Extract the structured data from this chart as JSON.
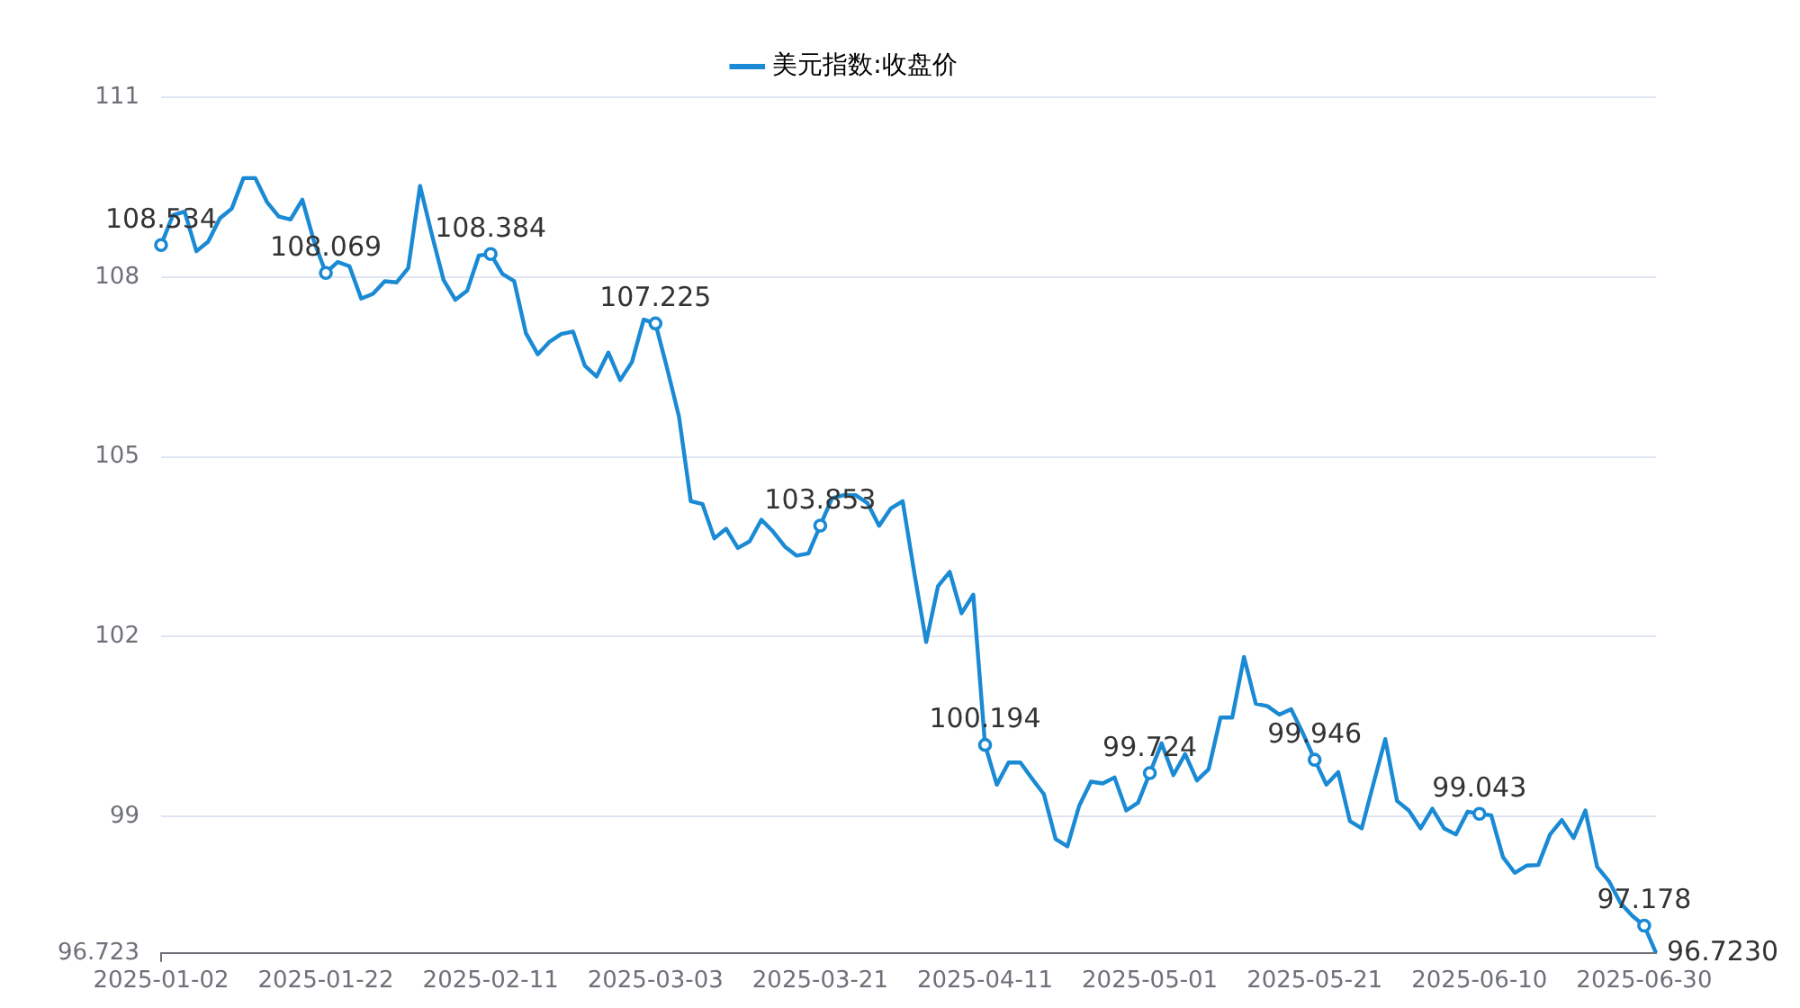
{
  "chart_data": {
    "type": "line",
    "categories": [
      "2025-01-02",
      null,
      null,
      null,
      null,
      null,
      null,
      null,
      null,
      null,
      null,
      null,
      null,
      null,
      "2025-01-22",
      null,
      null,
      null,
      null,
      null,
      null,
      null,
      null,
      null,
      null,
      null,
      null,
      null,
      "2025-02-11",
      null,
      null,
      null,
      null,
      null,
      null,
      null,
      null,
      null,
      null,
      null,
      null,
      null,
      "2025-03-03",
      null,
      null,
      null,
      null,
      null,
      null,
      null,
      null,
      null,
      null,
      null,
      null,
      null,
      "2025-03-21",
      null,
      null,
      null,
      null,
      null,
      null,
      null,
      null,
      null,
      null,
      null,
      null,
      null,
      "2025-04-11",
      null,
      null,
      null,
      null,
      null,
      null,
      null,
      null,
      null,
      null,
      null,
      null,
      null,
      "2025-05-01",
      null,
      null,
      null,
      null,
      null,
      null,
      null,
      null,
      null,
      null,
      null,
      null,
      null,
      "2025-05-21",
      null,
      null,
      null,
      null,
      null,
      null,
      null,
      null,
      null,
      null,
      null,
      null,
      null,
      "2025-06-10",
      null,
      null,
      null,
      null,
      null,
      null,
      null,
      null,
      null,
      null,
      null,
      null,
      null,
      "2025-06-30",
      null
    ],
    "series": [
      {
        "name": "美元指数:收盘价",
        "color": "#1a8ad4",
        "values": [
          108.534,
          109.03,
          109.09,
          108.43,
          108.59,
          108.98,
          109.14,
          109.65,
          109.65,
          109.25,
          109.01,
          108.96,
          109.29,
          108.59,
          108.069,
          108.25,
          108.18,
          107.64,
          107.72,
          107.93,
          107.91,
          108.15,
          109.52,
          108.71,
          107.95,
          107.62,
          107.77,
          108.36,
          108.384,
          108.05,
          107.93,
          107.06,
          106.71,
          106.92,
          107.05,
          107.09,
          106.52,
          106.34,
          106.74,
          106.28,
          106.58,
          107.29,
          107.225,
          106.47,
          105.67,
          104.26,
          104.21,
          103.64,
          103.8,
          103.48,
          103.59,
          103.95,
          103.75,
          103.5,
          103.35,
          103.39,
          103.853,
          104.31,
          104.36,
          104.36,
          104.23,
          103.85,
          104.14,
          104.26,
          103.05,
          101.91,
          102.84,
          103.08,
          102.39,
          102.7,
          100.194,
          99.53,
          99.9,
          99.9,
          99.63,
          99.37,
          98.62,
          98.5,
          99.18,
          99.58,
          99.55,
          99.65,
          99.1,
          99.23,
          99.724,
          100.22,
          99.69,
          100.04,
          99.6,
          99.79,
          100.65,
          100.65,
          101.66,
          100.88,
          100.84,
          100.7,
          100.79,
          100.39,
          99.946,
          99.53,
          99.74,
          98.92,
          98.8,
          99.55,
          100.29,
          99.26,
          99.1,
          98.8,
          99.13,
          98.8,
          98.7,
          99.08,
          99.043,
          99.02,
          98.32,
          98.06,
          98.18,
          98.19,
          98.7,
          98.94,
          98.64,
          99.1,
          98.16,
          97.92,
          97.55,
          97.34,
          97.178,
          96.723
        ],
        "value_labels": [
          "108.534",
          null,
          null,
          null,
          null,
          null,
          null,
          null,
          null,
          null,
          null,
          null,
          null,
          null,
          "108.069",
          null,
          null,
          null,
          null,
          null,
          null,
          null,
          null,
          null,
          null,
          null,
          null,
          null,
          "108.384",
          null,
          null,
          null,
          null,
          null,
          null,
          null,
          null,
          null,
          null,
          null,
          null,
          null,
          "107.225",
          null,
          null,
          null,
          null,
          null,
          null,
          null,
          null,
          null,
          null,
          null,
          null,
          null,
          "103.853",
          null,
          null,
          null,
          null,
          null,
          null,
          null,
          null,
          null,
          null,
          null,
          null,
          null,
          "100.194",
          null,
          null,
          null,
          null,
          null,
          null,
          null,
          null,
          null,
          null,
          null,
          null,
          null,
          "99.724",
          null,
          null,
          null,
          null,
          null,
          null,
          null,
          null,
          null,
          null,
          null,
          null,
          null,
          "99.946",
          null,
          null,
          null,
          null,
          null,
          null,
          null,
          null,
          null,
          null,
          null,
          null,
          null,
          "99.043",
          null,
          null,
          null,
          null,
          null,
          null,
          null,
          null,
          null,
          null,
          null,
          null,
          null,
          "97.178",
          "96.7230"
        ]
      }
    ],
    "ylim": [
      96.723,
      111
    ],
    "yticks": [
      96.723,
      99,
      102,
      105,
      108,
      111
    ],
    "grid": "y",
    "legend": "top",
    "line_style": "solid"
  }
}
